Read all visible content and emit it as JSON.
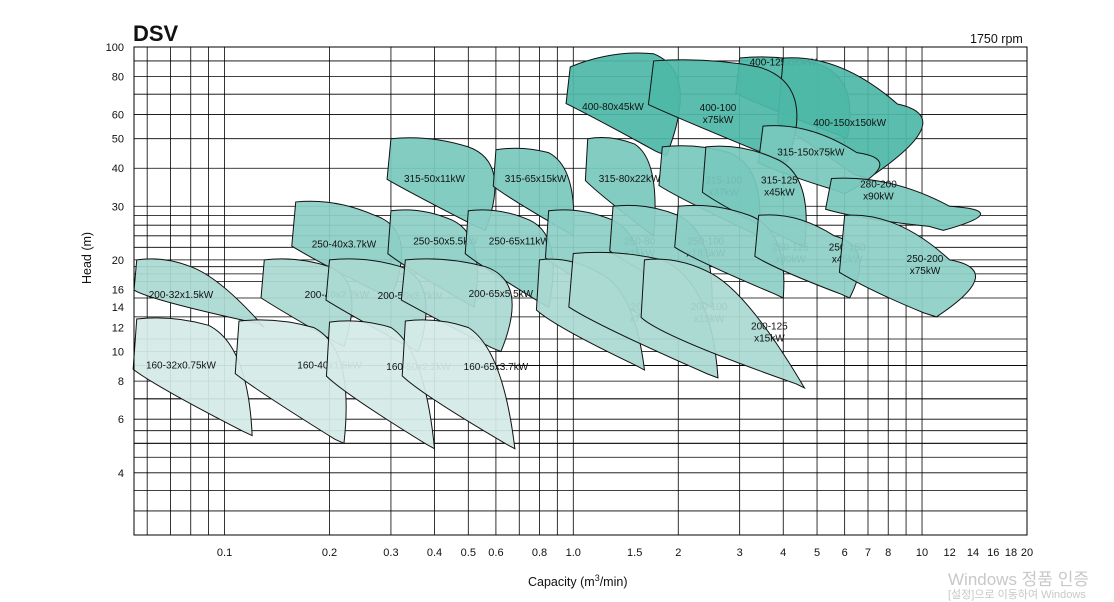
{
  "chart_data": {
    "type": "area",
    "title": "DSV",
    "speed_note": "1750 rpm",
    "xlabel_prefix": "Capacity (m",
    "xlabel_sup": "3",
    "xlabel_suffix": "/min)",
    "ylabel": "Head (m)",
    "x_scale": "log",
    "y_scale": "log",
    "xlim": [
      0.055,
      20
    ],
    "ylim": [
      2.5,
      100
    ],
    "grid": true,
    "x_ticks": [
      {
        "v": 0.1,
        "label": "0.1"
      },
      {
        "v": 0.2,
        "label": "0.2"
      },
      {
        "v": 0.3,
        "label": "0.3"
      },
      {
        "v": 0.4,
        "label": "0.4"
      },
      {
        "v": 0.5,
        "label": "0.5"
      },
      {
        "v": 0.6,
        "label": "0.6"
      },
      {
        "v": 0.8,
        "label": "0.8"
      },
      {
        "v": 1.0,
        "label": "1.0"
      },
      {
        "v": 1.5,
        "label": "1.5"
      },
      {
        "v": 2,
        "label": "2"
      },
      {
        "v": 3,
        "label": "3"
      },
      {
        "v": 4,
        "label": "4"
      },
      {
        "v": 5,
        "label": "5"
      },
      {
        "v": 6,
        "label": "6"
      },
      {
        "v": 7,
        "label": "7"
      },
      {
        "v": 8,
        "label": "8"
      },
      {
        "v": 10,
        "label": "10"
      },
      {
        "v": 12,
        "label": "12"
      },
      {
        "v": 14,
        "label": "14"
      },
      {
        "v": 16,
        "label": "16"
      },
      {
        "v": 18,
        "label": "18"
      },
      {
        "v": 20,
        "label": "20"
      }
    ],
    "y_ticks": [
      {
        "v": 4,
        "label": "4"
      },
      {
        "v": 6,
        "label": "6"
      },
      {
        "v": 8,
        "label": "8"
      },
      {
        "v": 10,
        "label": "10"
      },
      {
        "v": 12,
        "label": "12"
      },
      {
        "v": 14,
        "label": "14"
      },
      {
        "v": 16,
        "label": "16"
      },
      {
        "v": 20,
        "label": "20"
      },
      {
        "v": 30,
        "label": "30"
      },
      {
        "v": 40,
        "label": "40"
      },
      {
        "v": 50,
        "label": "50"
      },
      {
        "v": 60,
        "label": "60"
      },
      {
        "v": 80,
        "label": "80"
      },
      {
        "v": 100,
        "label": "100"
      }
    ],
    "pumps": [
      {
        "model": "400-80x45kW",
        "label": [
          "400-80x45kW"
        ],
        "q": [
          0.98,
          1.7
        ],
        "h": [
          86,
          95
        ],
        "q_end": 1.85,
        "h_end": 44,
        "lq": 1.3,
        "lh": 62
      },
      {
        "model": "400-125x90kW",
        "label": [
          "400-125x90kW"
        ],
        "q": [
          3.0,
          5.0
        ],
        "h": [
          92,
          88
        ],
        "q_end": 6.1,
        "h_end": 50,
        "lq": 4.0,
        "lh": 87
      },
      {
        "model": "400-150x150kW",
        "label": [
          "400-150x150kW"
        ],
        "q": [
          4.0,
          8.5
        ],
        "h": [
          92,
          65
        ],
        "q_end": 7.0,
        "h_end": 37,
        "lq": 6.2,
        "lh": 55
      },
      {
        "model": "400-100x75kW",
        "label": [
          "400-100",
          "x75kW"
        ],
        "q": [
          1.7,
          3.4
        ],
        "h": [
          90,
          86
        ],
        "q_end": 4.1,
        "h_end": 42,
        "lq": 2.6,
        "lh": 59
      },
      {
        "model": "315-150x75kW",
        "label": [
          "315-150x75kW"
        ],
        "q": [
          3.5,
          6.5
        ],
        "h": [
          55,
          45
        ],
        "q_end": 6.0,
        "h_end": 33,
        "lq": 4.8,
        "lh": 44
      },
      {
        "model": "280-200x90kW",
        "label": [
          "280-200",
          "x90kW"
        ],
        "q": [
          5.5,
          12
        ],
        "h": [
          37,
          30
        ],
        "q_end": 11.5,
        "h_end": 25,
        "lq": 7.5,
        "lh": 33
      },
      {
        "model": "315-50x11kW",
        "label": [
          "315-50x11kW"
        ],
        "q": [
          0.3,
          0.5
        ],
        "h": [
          50,
          47
        ],
        "q_end": 0.56,
        "h_end": 25,
        "lq": 0.4,
        "lh": 36
      },
      {
        "model": "315-65x15kW",
        "label": [
          "315-65x15kW"
        ],
        "q": [
          0.6,
          0.85
        ],
        "h": [
          46,
          45
        ],
        "q_end": 1.0,
        "h_end": 24,
        "lq": 0.78,
        "lh": 36
      },
      {
        "model": "315-80x22kW",
        "label": [
          "315-80x22kW"
        ],
        "q": [
          1.1,
          1.5
        ],
        "h": [
          50,
          48
        ],
        "q_end": 1.7,
        "h_end": 24,
        "lq": 1.45,
        "lh": 36
      },
      {
        "model": "315-100x37kW",
        "label": [
          "315-100",
          "x37kW"
        ],
        "q": [
          1.8,
          2.8
        ],
        "h": [
          47,
          45
        ],
        "q_end": 3.4,
        "h_end": 24,
        "lq": 2.7,
        "lh": 34
      },
      {
        "model": "315-125x45kW",
        "label": [
          "315-125",
          "x45kW"
        ],
        "q": [
          2.4,
          3.8
        ],
        "h": [
          47,
          43
        ],
        "q_end": 4.6,
        "h_end": 22,
        "lq": 3.9,
        "lh": 34
      },
      {
        "model": "250-40x3.7kW",
        "label": [
          "250-40x3.7kW"
        ],
        "q": [
          0.16,
          0.27
        ],
        "h": [
          31,
          28
        ],
        "q_end": 0.3,
        "h_end": 15,
        "lq": 0.22,
        "lh": 22
      },
      {
        "model": "250-50x5.5kW",
        "label": [
          "250-50x5.5kW"
        ],
        "q": [
          0.3,
          0.45
        ],
        "h": [
          29,
          27
        ],
        "q_end": 0.52,
        "h_end": 14,
        "lq": 0.43,
        "lh": 22.5
      },
      {
        "model": "250-65x11kW",
        "label": [
          "250-65x11kW"
        ],
        "q": [
          0.5,
          0.75
        ],
        "h": [
          29,
          27
        ],
        "q_end": 0.85,
        "h_end": 14,
        "lq": 0.7,
        "lh": 22.5
      },
      {
        "model": "250-80x15kW",
        "label": [
          "250-80",
          "x15kW"
        ],
        "q": [
          0.85,
          1.3
        ],
        "h": [
          29,
          27
        ],
        "q_end": 1.6,
        "h_end": 13,
        "lq": 1.55,
        "lh": 21.5
      },
      {
        "model": "250-100x18.5kW",
        "label": [
          "250-100",
          "x18.5kW"
        ],
        "q": [
          1.3,
          2.0
        ],
        "h": [
          30,
          28
        ],
        "q_end": 2.5,
        "h_end": 14,
        "lq": 2.4,
        "lh": 21.5
      },
      {
        "model": "250-125x30kW",
        "label": [
          "250-125",
          "x30kW"
        ],
        "q": [
          2.0,
          3.2
        ],
        "h": [
          30,
          28
        ],
        "q_end": 4.0,
        "h_end": 15,
        "lq": 4.2,
        "lh": 20.5
      },
      {
        "model": "250-150x45kW",
        "label": [
          "250-150",
          "x45kW"
        ],
        "q": [
          3.4,
          5.6
        ],
        "h": [
          28,
          24
        ],
        "q_end": 6.2,
        "h_end": 15,
        "lq": 6.1,
        "lh": 20.5
      },
      {
        "model": "250-200x75kW",
        "label": [
          "250-200",
          "x75kW"
        ],
        "q": [
          6.0,
          12
        ],
        "h": [
          28,
          20
        ],
        "q_end": 11,
        "h_end": 13,
        "lq": 10.2,
        "lh": 18.8
      },
      {
        "model": "200-32x1.5kW",
        "label": [
          "200-32x1.5kW"
        ],
        "q": [
          0.056,
          0.08
        ],
        "h": [
          20,
          19
        ],
        "q_end": 0.13,
        "h_end": 12,
        "lq": 0.075,
        "lh": 15
      },
      {
        "model": "200-40x2.2kW",
        "label": [
          "200-40x2.2kW"
        ],
        "q": [
          0.13,
          0.2
        ],
        "h": [
          20,
          19
        ],
        "q_end": 0.22,
        "h_end": 10.4,
        "lq": 0.21,
        "lh": 15
      },
      {
        "model": "200-50x3.7kW",
        "label": [
          "200-50x3.7kW"
        ],
        "q": [
          0.2,
          0.32
        ],
        "h": [
          20,
          19
        ],
        "q_end": 0.36,
        "h_end": 10,
        "lq": 0.34,
        "lh": 14.9
      },
      {
        "model": "200-65x5.5kW",
        "label": [
          "200-65x5.5kW"
        ],
        "q": [
          0.33,
          0.56
        ],
        "h": [
          20,
          19
        ],
        "q_end": 0.62,
        "h_end": 10,
        "lq": 0.62,
        "lh": 15.1
      },
      {
        "model": "200-80x7.5kW",
        "label": [
          "200-80",
          "x7.5kW"
        ],
        "q": [
          0.8,
          1.2
        ],
        "h": [
          20,
          18
        ],
        "q_end": 1.6,
        "h_end": 8.7,
        "lq": 1.62,
        "lh": 13.1
      },
      {
        "model": "200-100x15kW",
        "label": [
          "200-100",
          "x15kW"
        ],
        "q": [
          1.0,
          1.8
        ],
        "h": [
          21,
          20
        ],
        "q_end": 2.6,
        "h_end": 8.2,
        "lq": 2.45,
        "lh": 13.1
      },
      {
        "model": "200-125x15kW",
        "label": [
          "200-125",
          "x15kW"
        ],
        "q": [
          1.6,
          2.5
        ],
        "h": [
          20,
          18
        ],
        "q_end": 4.6,
        "h_end": 7.6,
        "lq": 3.65,
        "lh": 11.3
      },
      {
        "model": "160-32x0.75kW",
        "label": [
          "160-32x0.75kW"
        ],
        "q": [
          0.056,
          0.09
        ],
        "h": [
          12.8,
          12.2
        ],
        "q_end": 0.12,
        "h_end": 5.3,
        "lq": 0.075,
        "lh": 8.8
      },
      {
        "model": "160-40x1.5kW",
        "label": [
          "160-40x1.5kW"
        ],
        "q": [
          0.11,
          0.18
        ],
        "h": [
          12.6,
          12
        ],
        "q_end": 0.22,
        "h_end": 5,
        "lq": 0.2,
        "lh": 8.8
      },
      {
        "model": "160-50x2.2kW",
        "label": [
          "160-50x2.2kW"
        ],
        "q": [
          0.2,
          0.3
        ],
        "h": [
          12.5,
          12
        ],
        "q_end": 0.4,
        "h_end": 4.8,
        "lq": 0.36,
        "lh": 8.7
      },
      {
        "model": "160-65x3.7kW",
        "label": [
          "160-65x3.7kW"
        ],
        "q": [
          0.33,
          0.5
        ],
        "h": [
          12.6,
          12
        ],
        "q_end": 0.68,
        "h_end": 4.8,
        "lq": 0.6,
        "lh": 8.7
      }
    ]
  },
  "colors": {
    "row_160": "#d4ebe6",
    "row_200": "#aad9d2",
    "row_250": "#8ccfc6",
    "row_315": "#78c8bd",
    "row_400": "#4eb8a7",
    "grid": "#000000",
    "outline": "#111111"
  },
  "watermark": {
    "line1": "Windows 정품 인증",
    "line2": "[설정]으로 이동하여 Windows"
  }
}
